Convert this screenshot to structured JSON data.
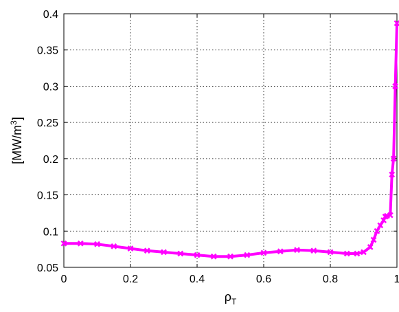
{
  "chart_data": {
    "type": "line",
    "title": "",
    "xlabel_base": "ρ",
    "xlabel_sub": "T",
    "ylabel_prefix": "[MW/m",
    "ylabel_sup": "3",
    "ylabel_suffix": "]",
    "xlim": [
      0,
      1
    ],
    "ylim": [
      0.05,
      0.4
    ],
    "grid": true,
    "xticks": [
      0,
      0.2,
      0.4,
      0.6,
      0.8,
      1
    ],
    "xtick_labels": [
      "0",
      "0.2",
      "0.4",
      "0.6",
      "0.8",
      "1"
    ],
    "yticks": [
      0.05,
      0.1,
      0.15,
      0.2,
      0.25,
      0.3,
      0.35,
      0.4
    ],
    "ytick_labels": [
      "0.05",
      "0.1",
      "0.15",
      "0.2",
      "0.25",
      "0.3",
      "0.35",
      "0.4"
    ],
    "series": [
      {
        "color": "#ff00ff",
        "marker": "x",
        "x": [
          0,
          0.05,
          0.1,
          0.15,
          0.2,
          0.25,
          0.3,
          0.35,
          0.4,
          0.45,
          0.5,
          0.55,
          0.6,
          0.65,
          0.7,
          0.75,
          0.8,
          0.85,
          0.88,
          0.9,
          0.92,
          0.93,
          0.94,
          0.95,
          0.96,
          0.965,
          0.97,
          0.98,
          0.985,
          0.99,
          0.995,
          1.0
        ],
        "y": [
          0.083,
          0.083,
          0.082,
          0.079,
          0.076,
          0.073,
          0.071,
          0.069,
          0.067,
          0.065,
          0.065,
          0.067,
          0.07,
          0.072,
          0.074,
          0.073,
          0.071,
          0.069,
          0.069,
          0.071,
          0.078,
          0.088,
          0.1,
          0.108,
          0.115,
          0.12,
          0.121,
          0.122,
          0.178,
          0.2,
          0.3,
          0.387
        ]
      }
    ]
  }
}
